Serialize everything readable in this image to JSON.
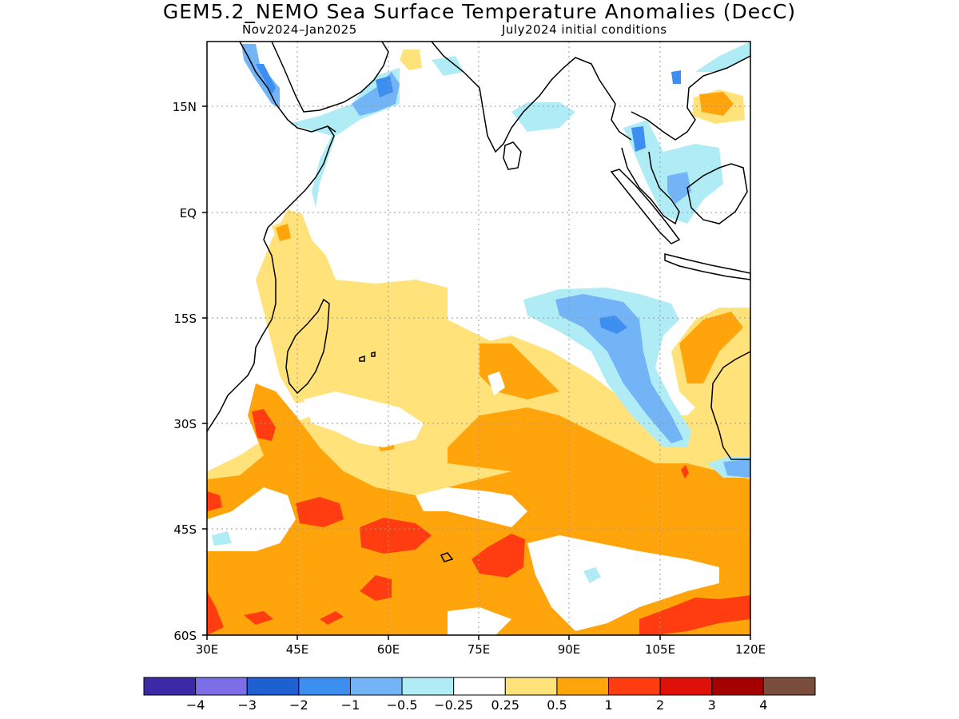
{
  "title": "GEM5.2_NEMO Sea Surface Temperature Anomalies (DecC)",
  "subtitle_left": "Nov2024–Jan2025",
  "subtitle_right": "July2024 initial conditions",
  "lat_labels": [
    "15N",
    "EQ",
    "15S",
    "30S",
    "45S",
    "60S"
  ],
  "lon_labels": [
    "30E",
    "45E",
    "60E",
    "75E",
    "90E",
    "105E",
    "120E"
  ],
  "colorbar": {
    "colors": [
      "#3b2aa8",
      "#7b6ee6",
      "#1e5fd1",
      "#3c8ff0",
      "#72b4f6",
      "#b0ecf6",
      "#ffffff",
      "#ffe37a",
      "#ffa40a",
      "#ff3d10",
      "#df1008",
      "#a40000",
      "#7a4c3c"
    ],
    "labels": [
      "−4",
      "−3",
      "−2",
      "−1",
      "−0.5",
      "−0.25",
      "0.25",
      "0.5",
      "1",
      "2",
      "3",
      "4"
    ]
  }
}
